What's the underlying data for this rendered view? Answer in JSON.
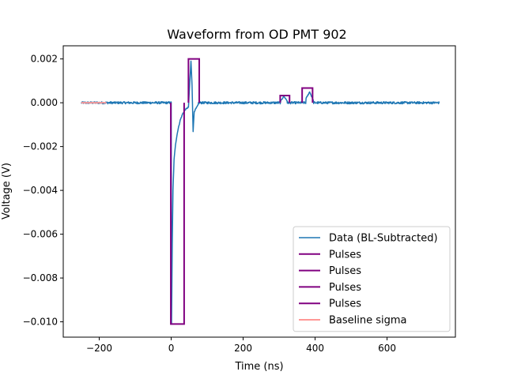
{
  "chart_data": {
    "type": "line",
    "title": "Waveform from OD PMT 902",
    "xlabel": "Time (ns)",
    "ylabel": "Voltage (V)",
    "xlim": [
      -300,
      790
    ],
    "ylim": [
      -0.0107,
      0.0026
    ],
    "xticks": [
      -200,
      0,
      200,
      400,
      600
    ],
    "xtick_labels": [
      "−200",
      "0",
      "200",
      "400",
      "600"
    ],
    "yticks": [
      -0.01,
      -0.008,
      -0.006,
      -0.004,
      -0.002,
      0.0,
      0.002
    ],
    "ytick_labels": [
      "−0.010",
      "−0.008",
      "−0.006",
      "−0.004",
      "−0.002",
      "0.000",
      "0.002"
    ],
    "grid": false,
    "legend_position": "lower-right",
    "series": [
      {
        "name": "Data (BL-Subtracted)",
        "color": "#1f77b4",
        "kind": "waveform",
        "x_start": -250,
        "x_end": 745,
        "noise_amplitude": 5e-05,
        "features": [
          {
            "x": 0,
            "y": 2e-05
          },
          {
            "x": 1,
            "y": -0.0101
          },
          {
            "x": 3,
            "y": -0.0065
          },
          {
            "x": 5,
            "y": -0.004
          },
          {
            "x": 8,
            "y": -0.0026
          },
          {
            "x": 12,
            "y": -0.0019
          },
          {
            "x": 18,
            "y": -0.0013
          },
          {
            "x": 25,
            "y": -0.0008
          },
          {
            "x": 32,
            "y": -0.0005
          },
          {
            "x": 40,
            "y": -0.0003
          },
          {
            "x": 48,
            "y": -0.0002
          },
          {
            "x": 55,
            "y": 0.0019
          },
          {
            "x": 58,
            "y": 0.0008
          },
          {
            "x": 61,
            "y": -0.0013
          },
          {
            "x": 64,
            "y": -0.0004
          },
          {
            "x": 75,
            "y": -0.0001
          },
          {
            "x": 305,
            "y": 0.0001
          },
          {
            "x": 313,
            "y": 0.0003
          },
          {
            "x": 322,
            "y": 0.0001
          },
          {
            "x": 375,
            "y": 0.0002
          },
          {
            "x": 385,
            "y": 0.0005
          },
          {
            "x": 395,
            "y": 0.0001
          }
        ]
      },
      {
        "name": "Pulses",
        "color": "#800080",
        "kind": "pulse",
        "x": [
          -1,
          -1,
          36,
          36
        ],
        "y": [
          0,
          -0.0101,
          -0.0101,
          0
        ]
      },
      {
        "name": "Pulses",
        "color": "#800080",
        "kind": "pulse",
        "x": [
          48,
          48,
          78,
          78
        ],
        "y": [
          0,
          0.002,
          0.002,
          0
        ]
      },
      {
        "name": "Pulses",
        "color": "#800080",
        "kind": "pulse",
        "x": [
          303,
          303,
          329,
          329
        ],
        "y": [
          0,
          0.00033,
          0.00033,
          0
        ]
      },
      {
        "name": "Pulses",
        "color": "#800080",
        "kind": "pulse",
        "x": [
          364,
          364,
          393,
          393
        ],
        "y": [
          0,
          0.00067,
          0.00067,
          0
        ]
      },
      {
        "name": "Baseline sigma",
        "color": "#ff9896",
        "kind": "band",
        "x": [
          -250,
          -180
        ],
        "y_center": 0.0,
        "y_half_width": 4e-05
      }
    ]
  }
}
